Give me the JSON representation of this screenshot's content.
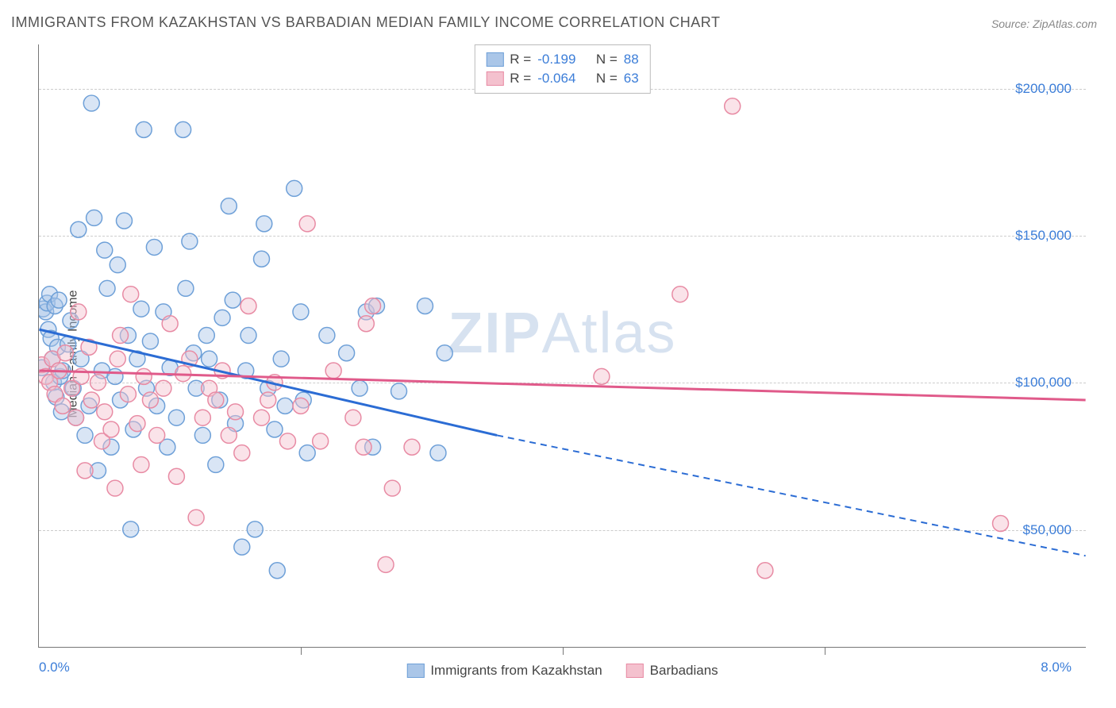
{
  "title": "IMMIGRANTS FROM KAZAKHSTAN VS BARBADIAN MEDIAN FAMILY INCOME CORRELATION CHART",
  "source": "Source: ZipAtlas.com",
  "ylabel": "Median Family Income",
  "watermark_bold": "ZIP",
  "watermark_light": "Atlas",
  "chart": {
    "type": "scatter",
    "xlim": [
      0,
      8
    ],
    "ylim": [
      10000,
      215000
    ],
    "xticks": [
      {
        "v": 0,
        "label": "0.0%"
      },
      {
        "v": 8,
        "label": "8.0%"
      }
    ],
    "xminor": [
      2,
      4,
      6
    ],
    "yticks": [
      {
        "v": 50000,
        "label": "$50,000"
      },
      {
        "v": 100000,
        "label": "$100,000"
      },
      {
        "v": 150000,
        "label": "$150,000"
      },
      {
        "v": 200000,
        "label": "$200,000"
      }
    ],
    "grid_color": "#cccccc",
    "background_color": "#ffffff",
    "marker_radius": 10,
    "marker_opacity": 0.45,
    "series": [
      {
        "name": "Immigrants from Kazakhstan",
        "color_fill": "#aac6e8",
        "color_stroke": "#6ea0d8",
        "R": "-0.199",
        "N": "88",
        "trend": {
          "x0": 0,
          "y0": 118000,
          "x_solid_end": 3.5,
          "y_solid_end": 82000,
          "x1": 8,
          "y1": 41000
        },
        "points": [
          [
            0.02,
            105000
          ],
          [
            0.03,
            125000
          ],
          [
            0.05,
            124000
          ],
          [
            0.06,
            127000
          ],
          [
            0.07,
            118000
          ],
          [
            0.08,
            130000
          ],
          [
            0.09,
            115000
          ],
          [
            0.1,
            108000
          ],
          [
            0.11,
            100000
          ],
          [
            0.12,
            126000
          ],
          [
            0.13,
            95000
          ],
          [
            0.14,
            112000
          ],
          [
            0.15,
            128000
          ],
          [
            0.16,
            102000
          ],
          [
            0.17,
            90000
          ],
          [
            0.18,
            104000
          ],
          [
            0.22,
            113000
          ],
          [
            0.24,
            121000
          ],
          [
            0.26,
            98000
          ],
          [
            0.28,
            88000
          ],
          [
            0.3,
            152000
          ],
          [
            0.32,
            108000
          ],
          [
            0.35,
            82000
          ],
          [
            0.38,
            92000
          ],
          [
            0.4,
            195000
          ],
          [
            0.42,
            156000
          ],
          [
            0.45,
            70000
          ],
          [
            0.48,
            104000
          ],
          [
            0.5,
            145000
          ],
          [
            0.52,
            132000
          ],
          [
            0.55,
            78000
          ],
          [
            0.58,
            102000
          ],
          [
            0.6,
            140000
          ],
          [
            0.62,
            94000
          ],
          [
            0.65,
            155000
          ],
          [
            0.68,
            116000
          ],
          [
            0.7,
            50000
          ],
          [
            0.72,
            84000
          ],
          [
            0.75,
            108000
          ],
          [
            0.78,
            125000
          ],
          [
            0.8,
            186000
          ],
          [
            0.82,
            98000
          ],
          [
            0.85,
            114000
          ],
          [
            0.88,
            146000
          ],
          [
            0.9,
            92000
          ],
          [
            0.95,
            124000
          ],
          [
            0.98,
            78000
          ],
          [
            1.0,
            105000
          ],
          [
            1.05,
            88000
          ],
          [
            1.1,
            186000
          ],
          [
            1.12,
            132000
          ],
          [
            1.15,
            148000
          ],
          [
            1.18,
            110000
          ],
          [
            1.2,
            98000
          ],
          [
            1.25,
            82000
          ],
          [
            1.28,
            116000
          ],
          [
            1.3,
            108000
          ],
          [
            1.35,
            72000
          ],
          [
            1.38,
            94000
          ],
          [
            1.4,
            122000
          ],
          [
            1.45,
            160000
          ],
          [
            1.48,
            128000
          ],
          [
            1.5,
            86000
          ],
          [
            1.55,
            44000
          ],
          [
            1.58,
            104000
          ],
          [
            1.6,
            116000
          ],
          [
            1.65,
            50000
          ],
          [
            1.7,
            142000
          ],
          [
            1.72,
            154000
          ],
          [
            1.75,
            98000
          ],
          [
            1.8,
            84000
          ],
          [
            1.82,
            36000
          ],
          [
            1.85,
            108000
          ],
          [
            1.88,
            92000
          ],
          [
            1.95,
            166000
          ],
          [
            2.0,
            124000
          ],
          [
            2.02,
            94000
          ],
          [
            2.05,
            76000
          ],
          [
            2.2,
            116000
          ],
          [
            2.35,
            110000
          ],
          [
            2.45,
            98000
          ],
          [
            2.5,
            124000
          ],
          [
            2.55,
            78000
          ],
          [
            2.58,
            126000
          ],
          [
            2.75,
            97000
          ],
          [
            2.95,
            126000
          ],
          [
            3.05,
            76000
          ],
          [
            3.1,
            110000
          ]
        ]
      },
      {
        "name": "Barbadians",
        "color_fill": "#f4c1ce",
        "color_stroke": "#e88ba4",
        "R": "-0.064",
        "N": "63",
        "trend": {
          "x0": 0,
          "y0": 104000,
          "x_solid_end": 8,
          "y_solid_end": 94000,
          "x1": 8,
          "y1": 94000
        },
        "points": [
          [
            0.02,
            106000
          ],
          [
            0.05,
            102000
          ],
          [
            0.08,
            100000
          ],
          [
            0.1,
            108000
          ],
          [
            0.12,
            96000
          ],
          [
            0.15,
            104000
          ],
          [
            0.18,
            92000
          ],
          [
            0.2,
            110000
          ],
          [
            0.25,
            98000
          ],
          [
            0.28,
            88000
          ],
          [
            0.3,
            124000
          ],
          [
            0.32,
            102000
          ],
          [
            0.35,
            70000
          ],
          [
            0.38,
            112000
          ],
          [
            0.4,
            94000
          ],
          [
            0.45,
            100000
          ],
          [
            0.48,
            80000
          ],
          [
            0.5,
            90000
          ],
          [
            0.55,
            84000
          ],
          [
            0.58,
            64000
          ],
          [
            0.6,
            108000
          ],
          [
            0.62,
            116000
          ],
          [
            0.68,
            96000
          ],
          [
            0.7,
            130000
          ],
          [
            0.75,
            86000
          ],
          [
            0.78,
            72000
          ],
          [
            0.8,
            102000
          ],
          [
            0.85,
            94000
          ],
          [
            0.9,
            82000
          ],
          [
            0.95,
            98000
          ],
          [
            1.0,
            120000
          ],
          [
            1.05,
            68000
          ],
          [
            1.1,
            103000
          ],
          [
            1.15,
            108000
          ],
          [
            1.2,
            54000
          ],
          [
            1.25,
            88000
          ],
          [
            1.3,
            98000
          ],
          [
            1.35,
            94000
          ],
          [
            1.4,
            104000
          ],
          [
            1.45,
            82000
          ],
          [
            1.5,
            90000
          ],
          [
            1.55,
            76000
          ],
          [
            1.6,
            126000
          ],
          [
            1.7,
            88000
          ],
          [
            1.75,
            94000
          ],
          [
            1.8,
            100000
          ],
          [
            1.9,
            80000
          ],
          [
            2.0,
            92000
          ],
          [
            2.05,
            154000
          ],
          [
            2.15,
            80000
          ],
          [
            2.25,
            104000
          ],
          [
            2.4,
            88000
          ],
          [
            2.48,
            78000
          ],
          [
            2.5,
            120000
          ],
          [
            2.55,
            126000
          ],
          [
            2.65,
            38000
          ],
          [
            2.7,
            64000
          ],
          [
            2.85,
            78000
          ],
          [
            4.3,
            102000
          ],
          [
            4.9,
            130000
          ],
          [
            5.3,
            194000
          ],
          [
            5.55,
            36000
          ],
          [
            7.35,
            52000
          ]
        ]
      }
    ]
  },
  "top_legend": {
    "R_label": "R  = ",
    "N_label": "N = "
  },
  "bottom_legend_labels": [
    "Immigrants from Kazakhstan",
    "Barbadians"
  ]
}
